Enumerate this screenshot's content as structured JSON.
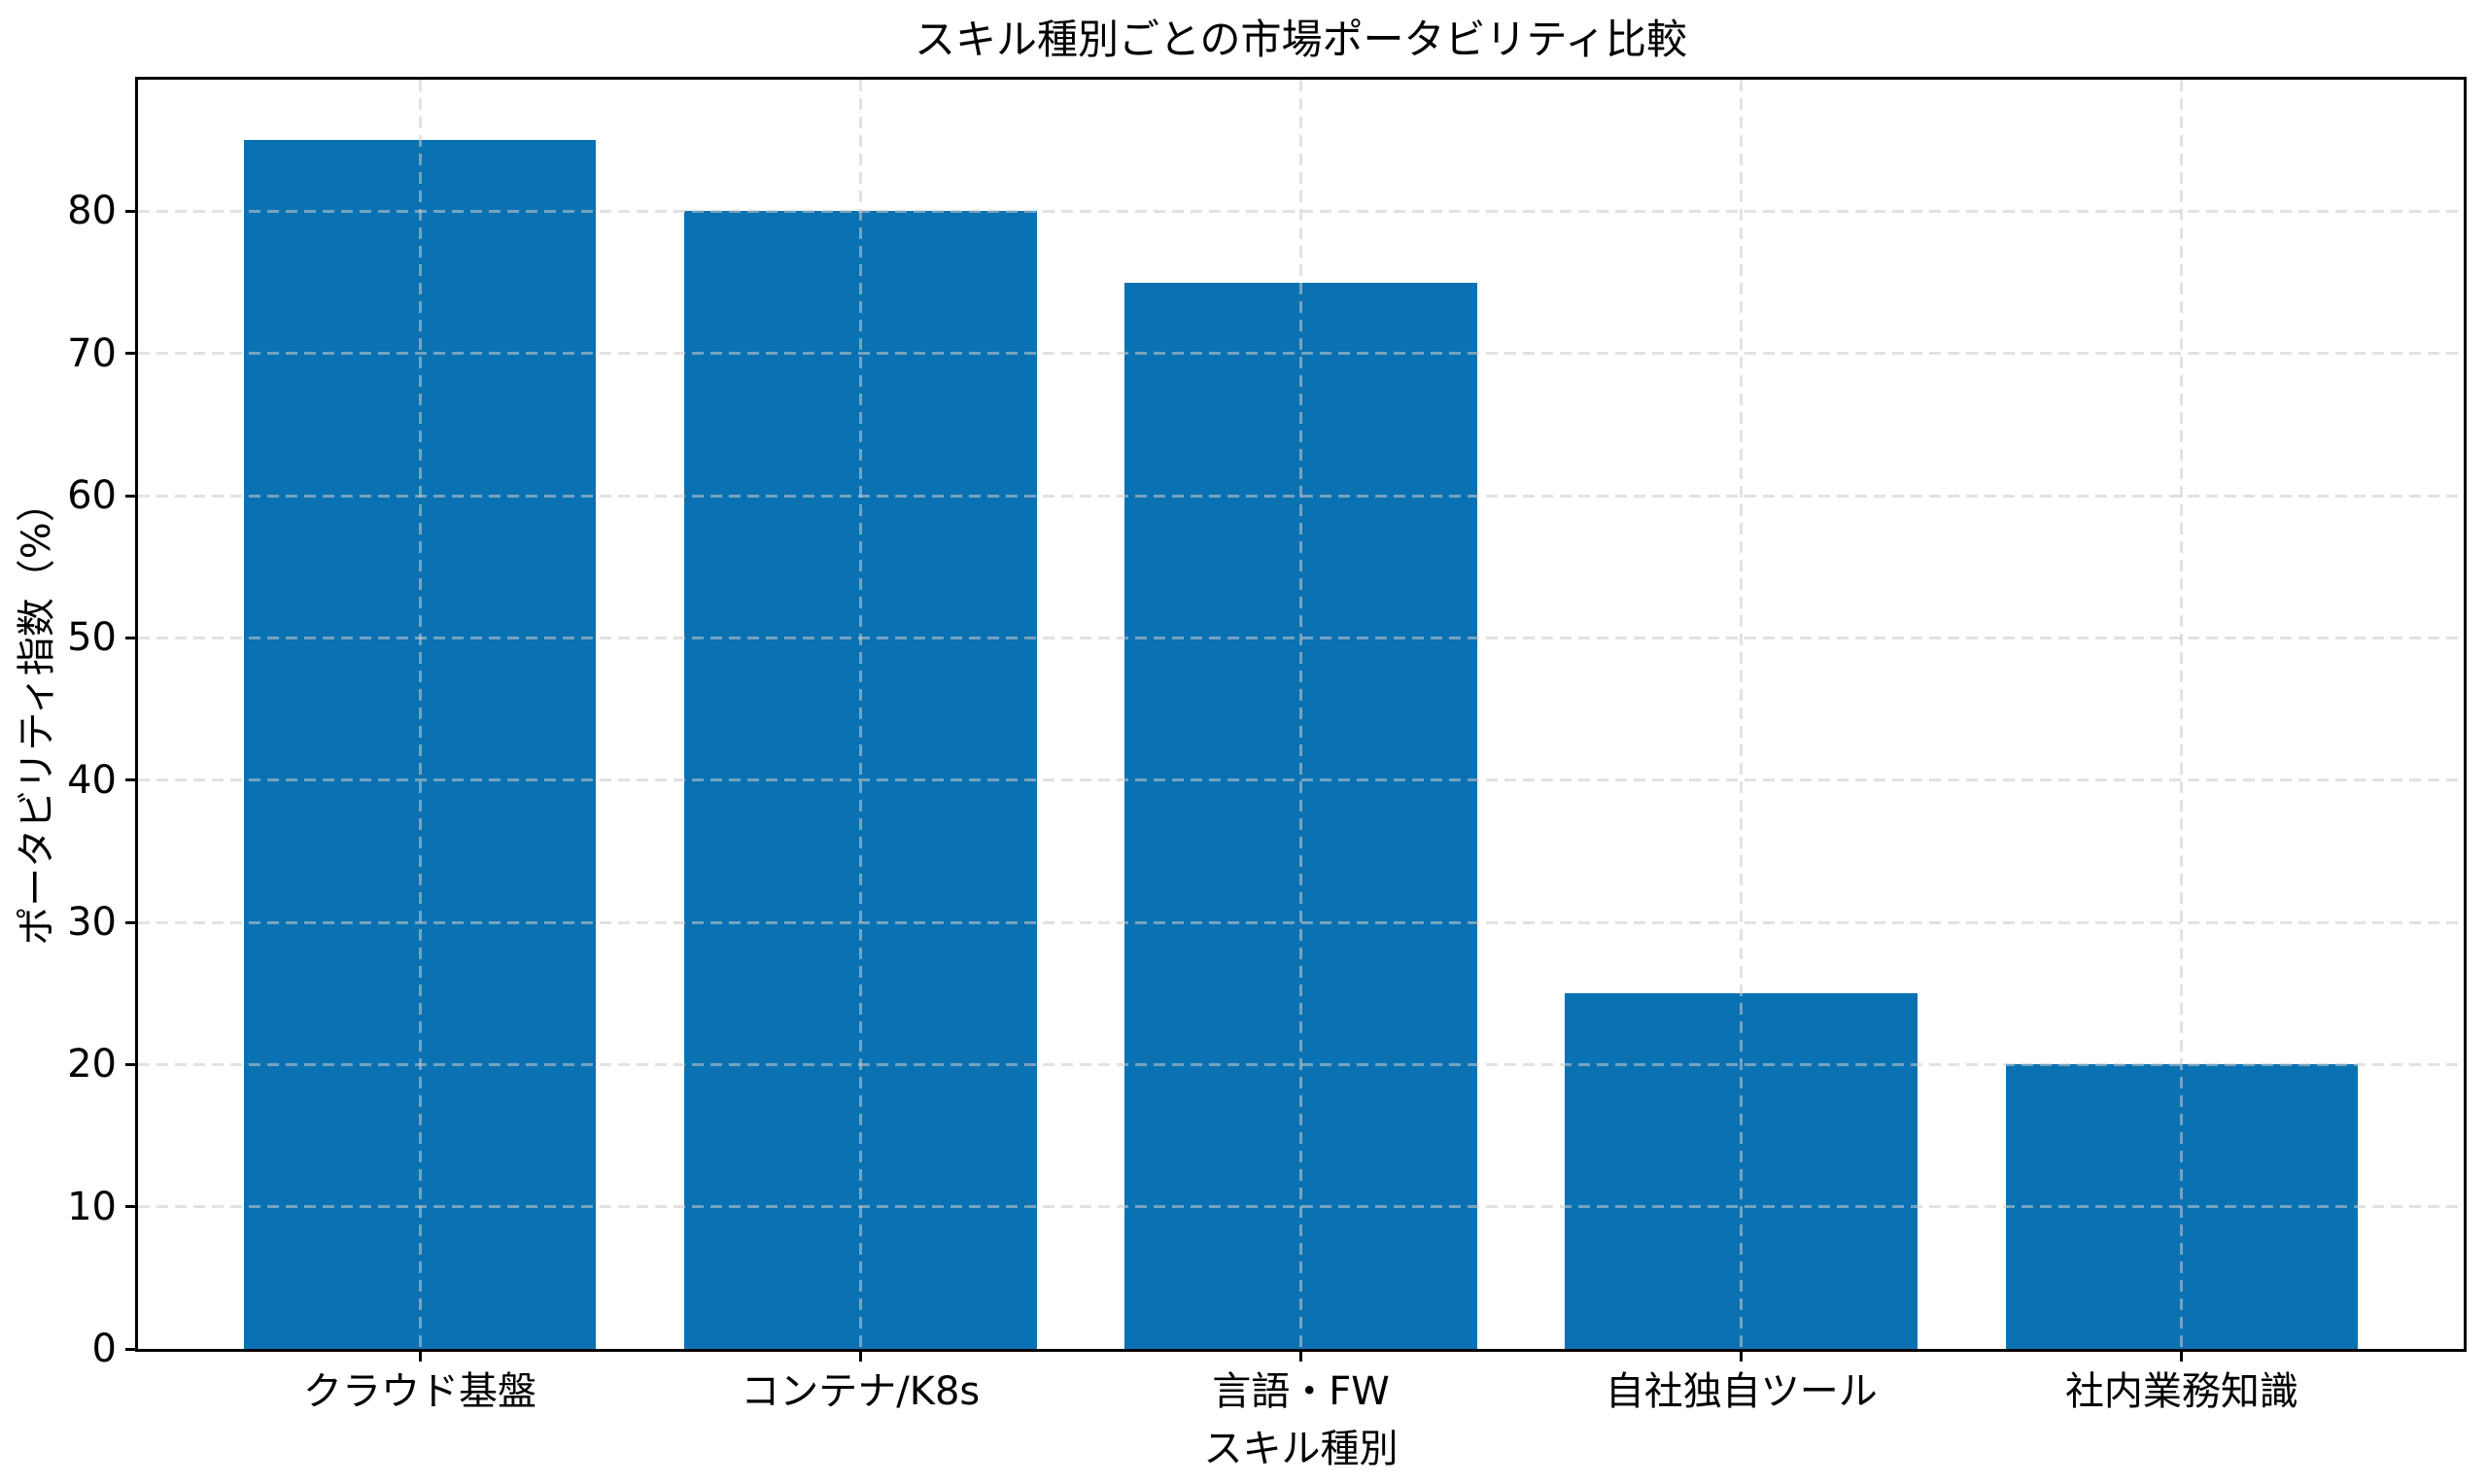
{
  "chart_data": {
    "type": "bar",
    "title": "スキル種別ごとの市場ポータビリティ比較",
    "categories": [
      "クラウド基盤",
      "コンテナ/K8s",
      "言語・FW",
      "自社独自ツール",
      "社内業務知識"
    ],
    "values": [
      85,
      80,
      75,
      25,
      20
    ],
    "xlabel": "スキル種別",
    "ylabel": "ポータビリティ指数（%）",
    "ylim": [
      0,
      89.25
    ],
    "yticks": [
      0,
      10,
      20,
      30,
      40,
      50,
      60,
      70,
      80
    ],
    "grid": "both, dashed, drawn over bars",
    "legend": "none",
    "bar_color": "#0a72b2",
    "grid_color": "#cbcbcb",
    "axis_color": "#000000",
    "bar_width_fraction": 0.8,
    "x_edge_margin_units": 0.64
  }
}
